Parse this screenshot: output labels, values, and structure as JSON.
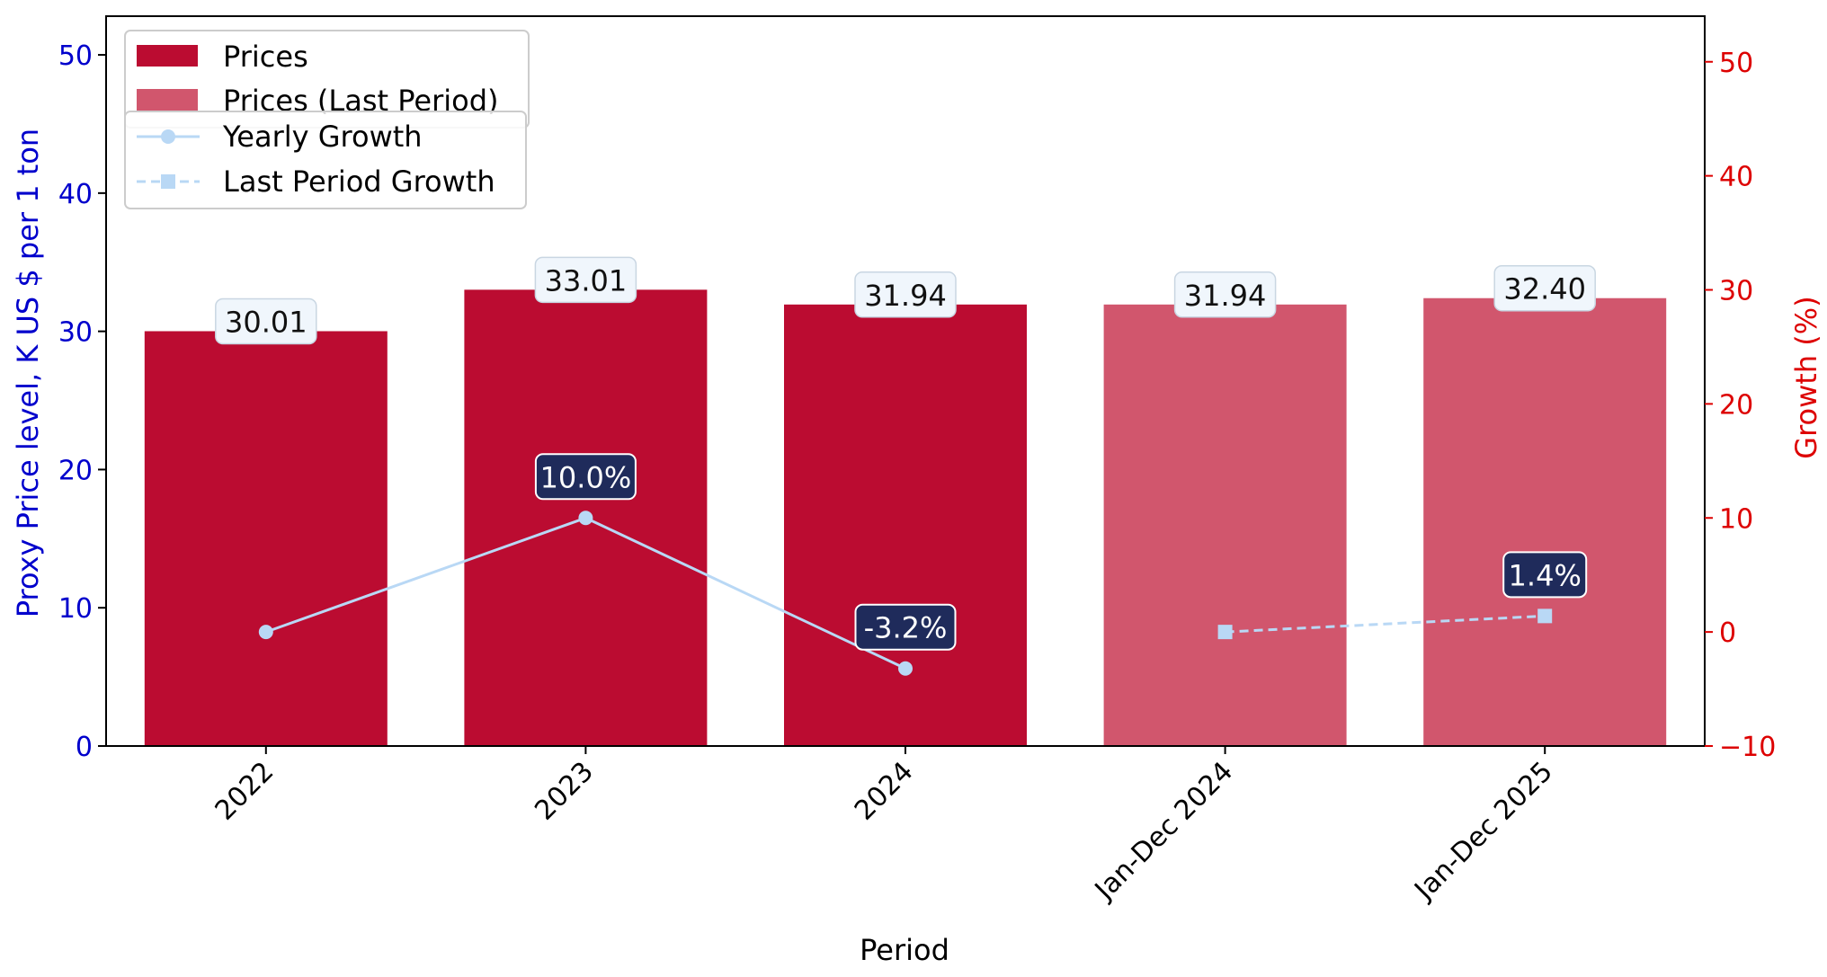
{
  "colors": {
    "prices": "#BB0C31",
    "prices_last": "#D1566D",
    "growth_line": "#B9D8F5",
    "left_axis": "#0000CC",
    "right_axis": "#DD0000",
    "label_box_fill": "#F0F6FC",
    "growth_box_fill": "#1F2B5B"
  },
  "legend": {
    "prices": "Prices",
    "prices_last": "Prices (Last Period)",
    "yearly_growth": "Yearly Growth",
    "last_growth": "Last Period Growth"
  },
  "chart_data": {
    "type": "bar",
    "categories": [
      "2022",
      "2023",
      "2024",
      "Jan-Dec 2024",
      "Jan-Dec 2025"
    ],
    "series": [
      {
        "name": "Prices",
        "values": [
          30.01,
          33.01,
          31.94,
          null,
          null
        ]
      },
      {
        "name": "Prices (Last Period)",
        "values": [
          null,
          null,
          null,
          31.94,
          32.4
        ]
      }
    ],
    "bar_labels": [
      "30.01",
      "33.01",
      "31.94",
      "31.94",
      "32.40"
    ],
    "line_series": [
      {
        "name": "Yearly Growth",
        "axis": "right",
        "style": "solid",
        "marker": "circle",
        "points": [
          [
            "2022",
            0.0
          ],
          [
            "2023",
            10.0
          ],
          [
            "2024",
            -3.2
          ]
        ]
      },
      {
        "name": "Last Period Growth",
        "axis": "right",
        "style": "dashed",
        "marker": "square",
        "points": [
          [
            "Jan-Dec 2024",
            0.0
          ],
          [
            "Jan-Dec 2025",
            1.4
          ]
        ]
      }
    ],
    "growth_labels": [
      {
        "category": "2023",
        "value": 10.0,
        "text": "10.0%"
      },
      {
        "category": "2024",
        "value": -3.2,
        "text": "-3.2%"
      },
      {
        "category": "Jan-Dec 2025",
        "value": 1.4,
        "text": "1.4%"
      }
    ],
    "xlabel": "Period",
    "ylabel": "Proxy Price level, K US $ per 1 ton",
    "y2label": "Growth (%)",
    "ylim": [
      0,
      52.8
    ],
    "y2lim": [
      -10,
      54
    ],
    "yticks": [
      0,
      10,
      20,
      30,
      40,
      50
    ],
    "y2ticks": [
      -10,
      0,
      10,
      20,
      30,
      40,
      50
    ],
    "grid": false,
    "legend_position": "top-left"
  }
}
